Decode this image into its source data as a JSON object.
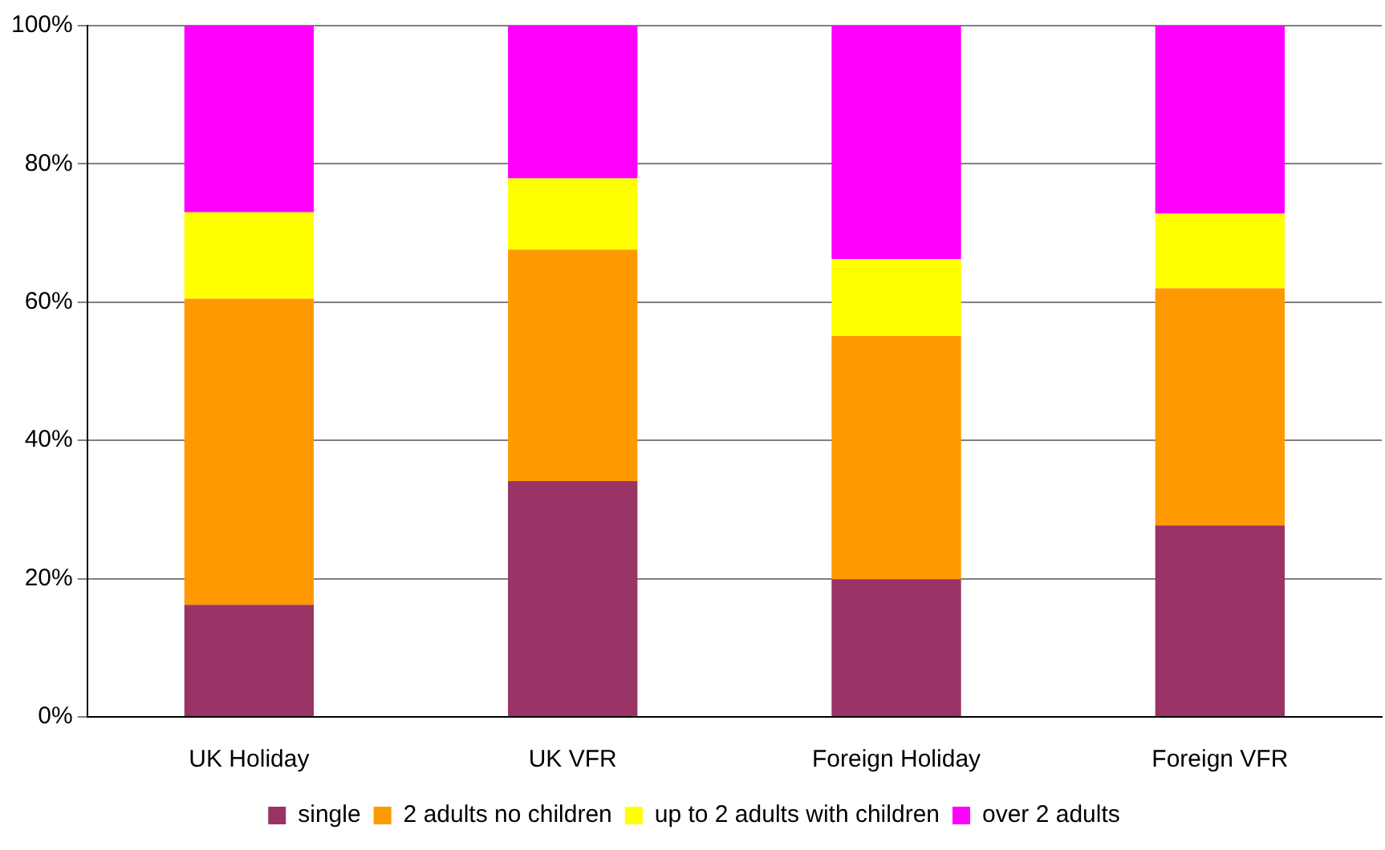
{
  "chart_data": {
    "type": "bar",
    "stacked": true,
    "categories": [
      "UK Holiday",
      "UK VFR",
      "Foreign Holiday",
      "Foreign VFR"
    ],
    "series": [
      {
        "name": "single",
        "color": "#993366",
        "values": [
          16.2,
          34.1,
          19.9,
          27.7
        ]
      },
      {
        "name": "2 adults no children",
        "color": "#ff9900",
        "values": [
          44.3,
          33.5,
          35.2,
          34.3
        ]
      },
      {
        "name": "up to 2 adults with children",
        "color": "#ffff00",
        "values": [
          12.5,
          10.3,
          11.1,
          10.8
        ]
      },
      {
        "name": "over 2 adults",
        "color": "#ff00ff",
        "values": [
          27.0,
          22.1,
          33.8,
          27.2
        ]
      }
    ],
    "ylim": [
      0,
      100
    ],
    "yticks": [
      {
        "value": 0,
        "label": "0%"
      },
      {
        "value": 20,
        "label": "20%"
      },
      {
        "value": 40,
        "label": "40%"
      },
      {
        "value": 60,
        "label": "60%"
      },
      {
        "value": 80,
        "label": "80%"
      },
      {
        "value": 100,
        "label": "100%"
      }
    ],
    "grid": "y",
    "legend": "bottom"
  }
}
